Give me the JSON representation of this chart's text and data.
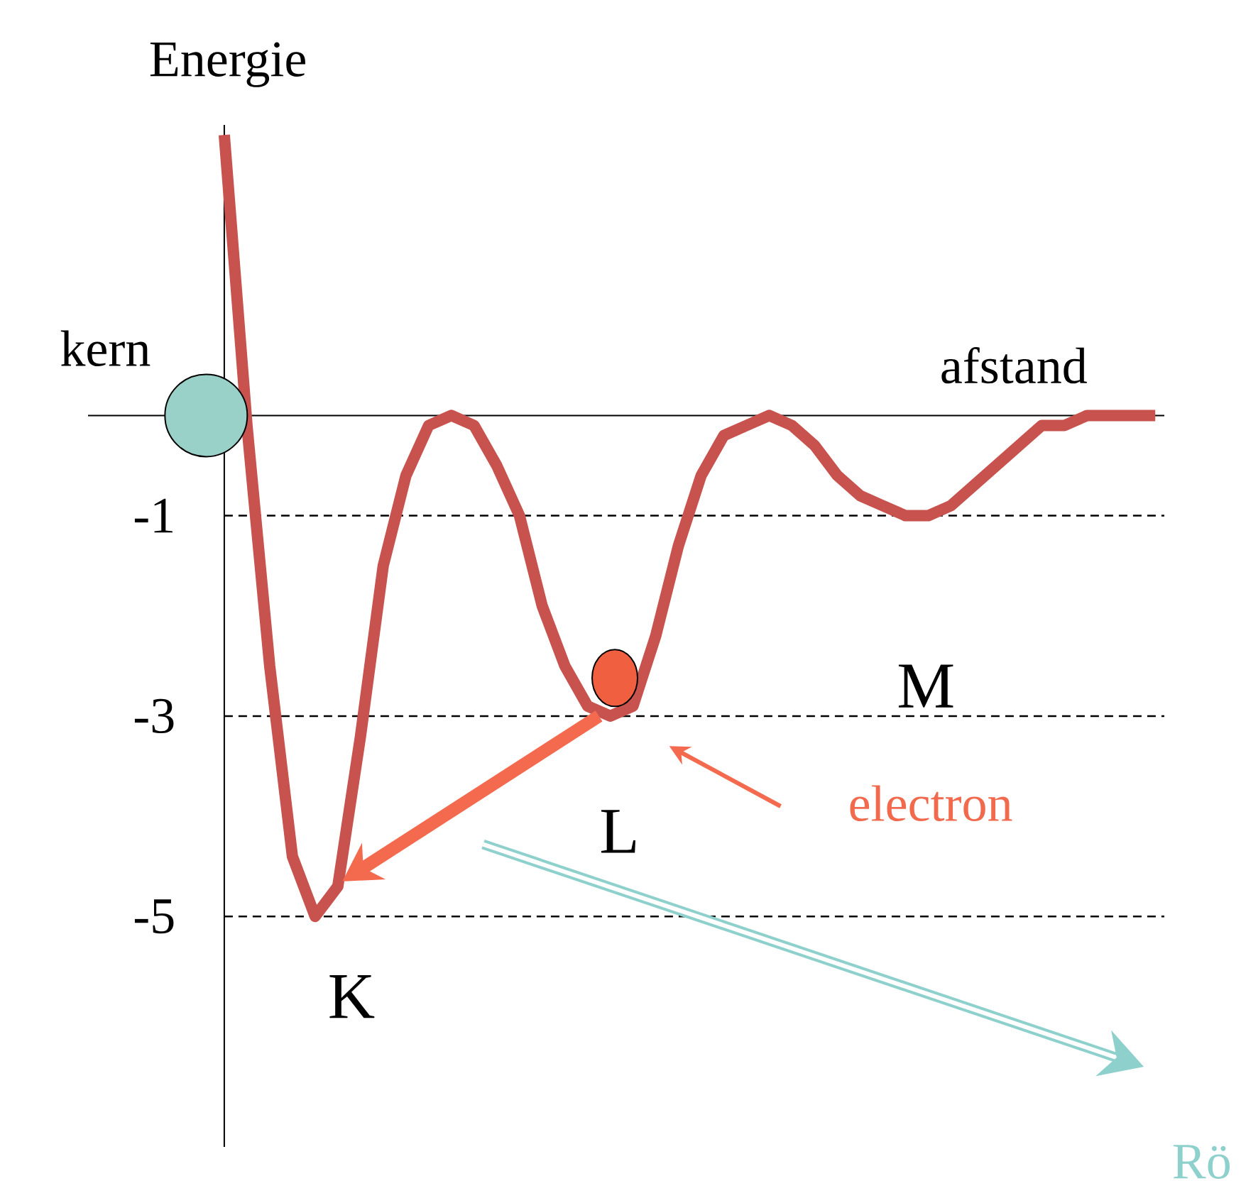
{
  "chart_data": {
    "type": "line",
    "xlabel": "afstand",
    "ylabel": "Energie",
    "categories": [
      null,
      null,
      null,
      null,
      null,
      null,
      null,
      null,
      null,
      null,
      null,
      null,
      null,
      null,
      null,
      null,
      null,
      null,
      null,
      null,
      null,
      null,
      null,
      null,
      null,
      null,
      null,
      null,
      null,
      null,
      null,
      null,
      null,
      null,
      null,
      null,
      null,
      null,
      null,
      null,
      null,
      null
    ],
    "series": [
      {
        "color": "#c8524e",
        "values": [
          2.8,
          -0.1,
          -2.5,
          -4.4,
          -5,
          -4.7,
          -3.2,
          -1.5,
          -0.6,
          -0.1,
          0,
          -0.1,
          -0.5,
          -1,
          -1.9,
          -2.5,
          -2.9,
          -3,
          -2.9,
          -2.2,
          -1.3,
          -0.6,
          -0.2,
          -0.1,
          0,
          -0.1,
          -0.3,
          -0.6,
          -0.8,
          -0.9,
          -1,
          -1,
          -0.9,
          -0.7,
          -0.5,
          -0.3,
          -0.1,
          -0.1,
          0,
          0,
          0,
          0
        ]
      }
    ],
    "ylim": [
      -7.3,
      2.9
    ],
    "yticks": [
      -1,
      -3,
      -5
    ],
    "ref_lines": [
      {
        "axis": "y",
        "value": -1,
        "color": "#000000",
        "line_style": "dashed"
      },
      {
        "axis": "y",
        "value": -3,
        "color": "#000000",
        "line_style": "dashed"
      },
      {
        "axis": "y",
        "value": -5,
        "color": "#000000",
        "line_style": "dashed"
      }
    ],
    "annotations": [
      "kern",
      "K",
      "L",
      "M",
      "electron",
      "Rö"
    ],
    "grid": false,
    "marker": "none",
    "line_style": "solid"
  }
}
